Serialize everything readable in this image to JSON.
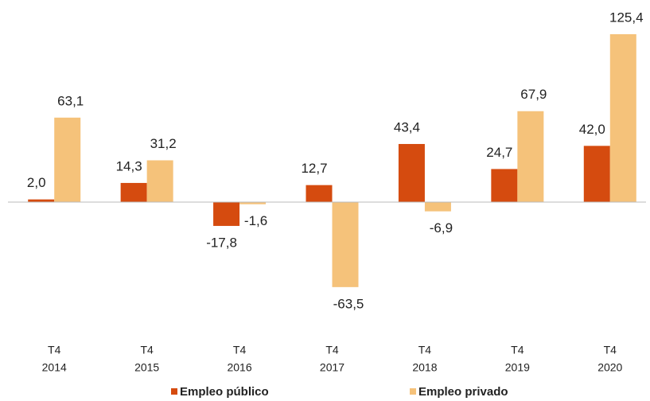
{
  "chart_data": {
    "type": "bar",
    "categories": [
      [
        "T4",
        "2014"
      ],
      [
        "T4",
        "2015"
      ],
      [
        "T4",
        "2016"
      ],
      [
        "T4",
        "2017"
      ],
      [
        "T4",
        "2018"
      ],
      [
        "T4",
        "2019"
      ],
      [
        "T4",
        "2020"
      ]
    ],
    "series": [
      {
        "name": "Empleo público",
        "color": "#d54b0f",
        "values": [
          2.0,
          14.3,
          -17.8,
          12.7,
          43.4,
          24.7,
          42.0
        ],
        "value_labels": [
          "2,0",
          "14,3",
          "-17,8",
          "12,7",
          "43,4",
          "24,7",
          "42,0"
        ]
      },
      {
        "name": "Empleo privado",
        "color": "#f5c27a",
        "values": [
          63.1,
          31.2,
          -1.6,
          -63.5,
          -6.9,
          67.9,
          125.4
        ],
        "value_labels": [
          "63,1",
          "31,2",
          "-1,6",
          "-63,5",
          "-6,9",
          "67,9",
          "125,4"
        ]
      }
    ],
    "legend": "bottom"
  }
}
